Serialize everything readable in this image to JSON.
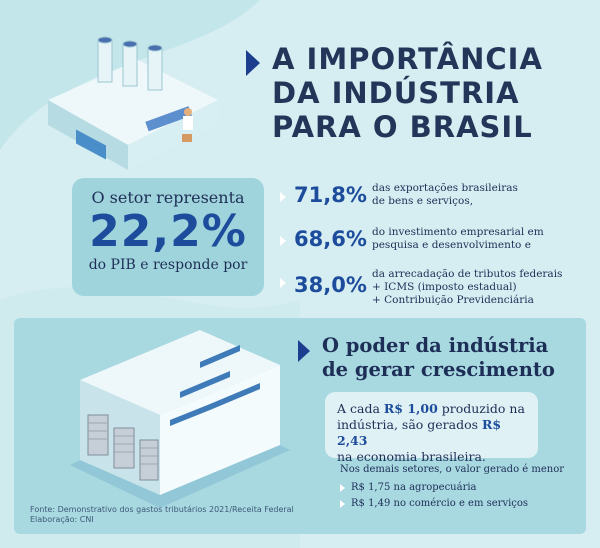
{
  "title": {
    "line1": "A IMPORTÂNCIA",
    "line2": "DA INDÚSTRIA",
    "line3": "PARA O BRASIL"
  },
  "pib": {
    "line1": "O setor representa",
    "value": "22,2%",
    "line3": "do PIB e responde por"
  },
  "stats": [
    {
      "value": "71,8%",
      "text_l1": "das exportações brasileiras",
      "text_l2": "de bens e serviços,",
      "text_l3": ""
    },
    {
      "value": "68,6%",
      "text_l1": "do investimento empresarial em",
      "text_l2": "pesquisa e desenvolvimento e",
      "text_l3": ""
    },
    {
      "value": "38,0%",
      "text_l1": "da arrecadação de tributos federais",
      "text_l2": "+ ICMS (imposto estadual)",
      "text_l3": "+ Contribuição Previdenciária"
    }
  ],
  "growth": {
    "title_l1": "O poder da indústria",
    "title_l2": "de gerar crescimento",
    "box_p1": "A cada ",
    "box_v1": "R$ 1,00",
    "box_p2": " produzido na",
    "box_p3": "indústria, são gerados ",
    "box_v2": "R$ 2,43",
    "box_p4": "na economia brasileira.",
    "others_heading": "Nos demais setores, o valor gerado é menor",
    "others": [
      "R$ 1,75 na agropecuária",
      "R$ 1,49 no comércio e em serviços"
    ]
  },
  "source": {
    "line1": "Fonte: Demonstrativo dos gastos tributários 2021/Receita Federal",
    "line2": "Elaboração: CNI"
  },
  "colors": {
    "background": "#d6eef1",
    "accent": "#1d4c9c",
    "panel": "#a8d8e0"
  }
}
